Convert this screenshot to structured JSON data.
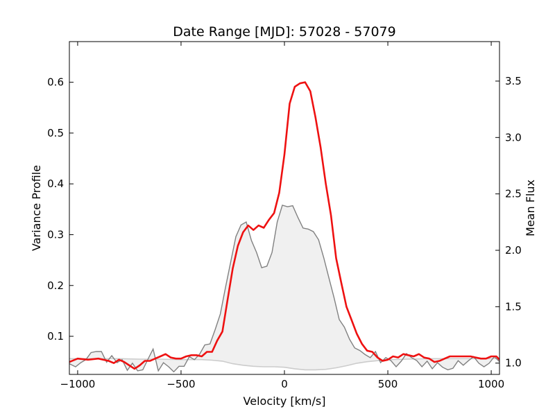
{
  "chart_data": {
    "type": "line",
    "title": "Date Range [MJD]: 57028 - 57079",
    "xlabel": "Velocity [km/s]",
    "ylabel_left": "Variance Profile",
    "ylabel_right": "Mean Flux",
    "xlim": [
      -1040,
      1040
    ],
    "ylim_left": [
      0.025,
      0.68
    ],
    "ylim_right": [
      0.9,
      3.85
    ],
    "grid": false,
    "x_ticks": [
      -1000,
      -500,
      0,
      500,
      1000
    ],
    "x_tick_labels": [
      "−1000",
      "−500",
      "0",
      "500",
      "1000"
    ],
    "y_left_ticks": [
      0.1,
      0.2,
      0.3,
      0.4,
      0.5,
      0.6
    ],
    "y_left_tick_labels": [
      "0.1",
      "0.2",
      "0.3",
      "0.4",
      "0.5",
      "0.6"
    ],
    "y_right_ticks": [
      1.0,
      1.5,
      2.0,
      2.5,
      3.0,
      3.5
    ],
    "y_right_tick_labels": [
      "1.0",
      "1.5",
      "2.0",
      "2.5",
      "3.0",
      "3.5"
    ],
    "colors": {
      "mean_flux": "#ee1111",
      "variance": "#808080",
      "variance_fill": "#f0f0f0",
      "baseline": "#cccccc"
    },
    "series": [
      {
        "key": "variance_profile",
        "axis": "left",
        "style": "gray-line-filled",
        "x": [
          -1040,
          -1010,
          -985,
          -960,
          -935,
          -910,
          -885,
          -860,
          -835,
          -810,
          -785,
          -760,
          -735,
          -710,
          -685,
          -660,
          -635,
          -610,
          -585,
          -560,
          -535,
          -510,
          -485,
          -460,
          -435,
          -410,
          -385,
          -360,
          -335,
          -310,
          -285,
          -260,
          -235,
          -210,
          -185,
          -160,
          -135,
          -110,
          -85,
          -60,
          -35,
          -10,
          15,
          40,
          65,
          90,
          115,
          140,
          165,
          190,
          215,
          240,
          265,
          290,
          315,
          340,
          365,
          390,
          415,
          440,
          465,
          490,
          515,
          540,
          565,
          590,
          615,
          640,
          665,
          690,
          715,
          740,
          765,
          790,
          815,
          840,
          865,
          890,
          915,
          940,
          965,
          990,
          1015,
          1040
        ],
        "y": [
          0.046,
          0.04,
          0.048,
          0.054,
          0.068,
          0.07,
          0.07,
          0.049,
          0.062,
          0.048,
          0.054,
          0.033,
          0.047,
          0.032,
          0.034,
          0.055,
          0.075,
          0.032,
          0.048,
          0.04,
          0.03,
          0.041,
          0.041,
          0.06,
          0.054,
          0.065,
          0.083,
          0.085,
          0.113,
          0.144,
          0.196,
          0.246,
          0.296,
          0.319,
          0.325,
          0.289,
          0.265,
          0.235,
          0.238,
          0.265,
          0.325,
          0.358,
          0.355,
          0.357,
          0.334,
          0.313,
          0.311,
          0.306,
          0.29,
          0.255,
          0.215,
          0.176,
          0.133,
          0.118,
          0.094,
          0.077,
          0.072,
          0.064,
          0.058,
          0.07,
          0.048,
          0.058,
          0.052,
          0.04,
          0.051,
          0.066,
          0.058,
          0.052,
          0.04,
          0.051,
          0.036,
          0.048,
          0.039,
          0.034,
          0.037,
          0.052,
          0.043,
          0.052,
          0.06,
          0.047,
          0.04,
          0.047,
          0.06,
          0.05
        ]
      },
      {
        "key": "rms_floor",
        "axis": "left",
        "style": "light-gray-line",
        "x": [
          -1040,
          -900,
          -800,
          -700,
          -600,
          -500,
          -400,
          -350,
          -300,
          -250,
          -200,
          -150,
          -100,
          -50,
          0,
          50,
          100,
          150,
          200,
          250,
          300,
          350,
          400,
          450,
          500,
          600,
          700,
          800,
          900,
          1040
        ],
        "y": [
          0.056,
          0.056,
          0.056,
          0.055,
          0.055,
          0.054,
          0.054,
          0.053,
          0.051,
          0.046,
          0.043,
          0.041,
          0.04,
          0.04,
          0.039,
          0.036,
          0.034,
          0.034,
          0.035,
          0.038,
          0.042,
          0.047,
          0.05,
          0.052,
          0.054,
          0.055,
          0.056,
          0.056,
          0.056,
          0.056
        ]
      },
      {
        "key": "mean_flux",
        "axis": "right",
        "style": "red-line",
        "x": [
          -1040,
          -1000,
          -950,
          -900,
          -850,
          -825,
          -800,
          -775,
          -750,
          -725,
          -700,
          -675,
          -650,
          -625,
          -600,
          -575,
          -550,
          -525,
          -500,
          -475,
          -450,
          -425,
          -400,
          -375,
          -350,
          -325,
          -300,
          -275,
          -250,
          -225,
          -200,
          -175,
          -150,
          -125,
          -100,
          -75,
          -50,
          -25,
          0,
          25,
          50,
          75,
          100,
          125,
          150,
          175,
          200,
          225,
          250,
          275,
          300,
          325,
          350,
          375,
          400,
          425,
          450,
          475,
          500,
          525,
          550,
          575,
          600,
          625,
          650,
          675,
          700,
          725,
          750,
          775,
          800,
          825,
          850,
          875,
          900,
          925,
          950,
          975,
          1000,
          1025,
          1040
        ],
        "y": [
          1.01,
          1.04,
          1.03,
          1.04,
          1.02,
          1.0,
          1.03,
          1.01,
          0.98,
          0.95,
          0.98,
          1.02,
          1.02,
          1.04,
          1.06,
          1.08,
          1.05,
          1.04,
          1.04,
          1.06,
          1.07,
          1.07,
          1.06,
          1.1,
          1.1,
          1.2,
          1.28,
          1.56,
          1.84,
          2.04,
          2.16,
          2.22,
          2.18,
          2.22,
          2.2,
          2.27,
          2.33,
          2.51,
          2.85,
          3.3,
          3.45,
          3.48,
          3.49,
          3.41,
          3.18,
          2.91,
          2.59,
          2.31,
          1.93,
          1.71,
          1.5,
          1.38,
          1.26,
          1.17,
          1.11,
          1.1,
          1.05,
          1.02,
          1.03,
          1.06,
          1.05,
          1.08,
          1.07,
          1.06,
          1.08,
          1.05,
          1.04,
          1.01,
          1.02,
          1.04,
          1.06,
          1.06,
          1.06,
          1.06,
          1.06,
          1.05,
          1.04,
          1.04,
          1.06,
          1.06,
          1.03
        ]
      }
    ]
  }
}
